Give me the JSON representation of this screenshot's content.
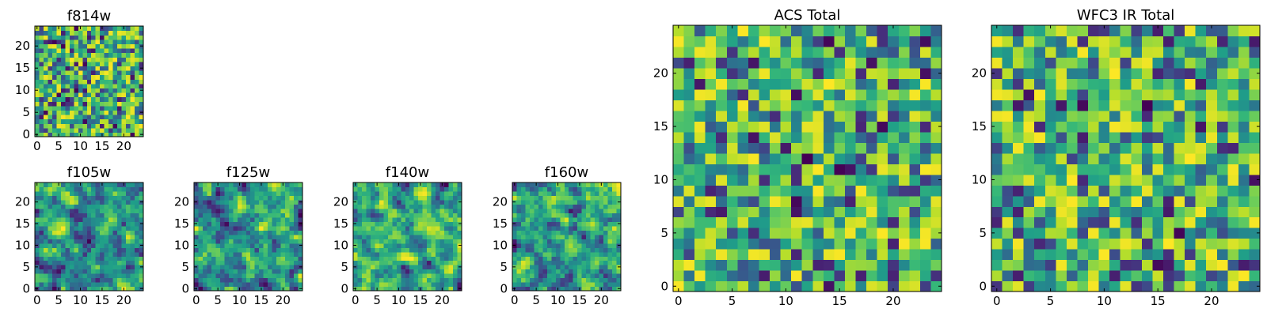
{
  "chart_data": [
    {
      "type": "heatmap",
      "title": "f814w",
      "x_ticks": [
        "0",
        "5",
        "10",
        "15",
        "20"
      ],
      "y_ticks": [
        "0",
        "5",
        "10",
        "15",
        "20"
      ],
      "xlim": [
        -0.5,
        24.5
      ],
      "ylim": [
        -0.5,
        24.5
      ],
      "grid_size": 25,
      "colormap": "viridis",
      "seed": 11,
      "smooth": 0
    },
    {
      "type": "heatmap",
      "title": "f105w",
      "x_ticks": [
        "0",
        "5",
        "10",
        "15",
        "20"
      ],
      "y_ticks": [
        "0",
        "5",
        "10",
        "15",
        "20"
      ],
      "xlim": [
        -0.5,
        24.5
      ],
      "ylim": [
        -0.5,
        24.5
      ],
      "grid_size": 25,
      "colormap": "viridis",
      "seed": 23,
      "smooth": 1
    },
    {
      "type": "heatmap",
      "title": "f125w",
      "x_ticks": [
        "0",
        "5",
        "10",
        "15",
        "20"
      ],
      "y_ticks": [
        "0",
        "5",
        "10",
        "15",
        "20"
      ],
      "xlim": [
        -0.5,
        24.5
      ],
      "ylim": [
        -0.5,
        24.5
      ],
      "grid_size": 25,
      "colormap": "viridis",
      "seed": 37,
      "smooth": 1
    },
    {
      "type": "heatmap",
      "title": "f140w",
      "x_ticks": [
        "0",
        "5",
        "10",
        "15",
        "20"
      ],
      "y_ticks": [
        "0",
        "5",
        "10",
        "15",
        "20"
      ],
      "xlim": [
        -0.5,
        24.5
      ],
      "ylim": [
        -0.5,
        24.5
      ],
      "grid_size": 25,
      "colormap": "viridis",
      "seed": 41,
      "smooth": 1
    },
    {
      "type": "heatmap",
      "title": "f160w",
      "x_ticks": [
        "0",
        "5",
        "10",
        "15",
        "20"
      ],
      "y_ticks": [
        "0",
        "5",
        "10",
        "15",
        "20"
      ],
      "xlim": [
        -0.5,
        24.5
      ],
      "ylim": [
        -0.5,
        24.5
      ],
      "grid_size": 25,
      "colormap": "viridis",
      "seed": 53,
      "smooth": 1
    },
    {
      "type": "heatmap",
      "title": "ACS Total",
      "x_ticks": [
        "0",
        "5",
        "10",
        "15",
        "20"
      ],
      "y_ticks": [
        "0",
        "5",
        "10",
        "15",
        "20"
      ],
      "xlim": [
        -0.5,
        24.5
      ],
      "ylim": [
        -0.5,
        24.5
      ],
      "grid_size": 25,
      "colormap": "viridis",
      "seed": 67,
      "smooth": 0
    },
    {
      "type": "heatmap",
      "title": "WFC3 IR Total",
      "x_ticks": [
        "0",
        "5",
        "10",
        "15",
        "20"
      ],
      "y_ticks": [
        "0",
        "5",
        "10",
        "15",
        "20"
      ],
      "xlim": [
        -0.5,
        24.5
      ],
      "ylim": [
        -0.5,
        24.5
      ],
      "grid_size": 25,
      "colormap": "viridis",
      "seed": 79,
      "smooth": 0
    }
  ]
}
